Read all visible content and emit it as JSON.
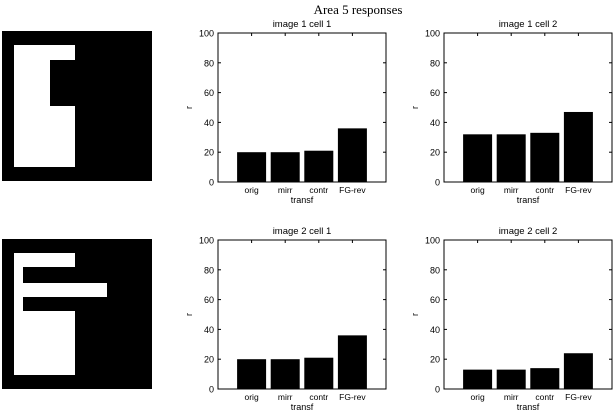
{
  "figure": {
    "title": "Area 5 responses"
  },
  "chart_data": [
    {
      "type": "bar",
      "title": "image 1 cell 1",
      "xlabel": "transf",
      "ylabel": "r",
      "categories": [
        "orig",
        "mirr",
        "contr",
        "FG-rev"
      ],
      "values": [
        20,
        20,
        21,
        36
      ],
      "ylim": [
        0,
        100
      ],
      "yticks": [
        0,
        20,
        40,
        60,
        80,
        100
      ],
      "bar_color": "#000000"
    },
    {
      "type": "bar",
      "title": "image 1 cell 2",
      "xlabel": "transf",
      "ylabel": "r",
      "categories": [
        "orig",
        "mirr",
        "contr",
        "FG-rev"
      ],
      "values": [
        32,
        32,
        33,
        47
      ],
      "ylim": [
        0,
        100
      ],
      "yticks": [
        0,
        20,
        40,
        60,
        80,
        100
      ],
      "bar_color": "#000000"
    },
    {
      "type": "bar",
      "title": "image 2 cell 1",
      "xlabel": "transf",
      "ylabel": "r",
      "categories": [
        "orig",
        "mirr",
        "contr",
        "FG-rev"
      ],
      "values": [
        20,
        20,
        21,
        36
      ],
      "ylim": [
        0,
        100
      ],
      "yticks": [
        0,
        20,
        40,
        60,
        80,
        100
      ],
      "bar_color": "#000000"
    },
    {
      "type": "bar",
      "title": "image 2 cell 2",
      "xlabel": "transf",
      "ylabel": "r",
      "categories": [
        "orig",
        "mirr",
        "contr",
        "FG-rev"
      ],
      "values": [
        13,
        13,
        14,
        24
      ],
      "ylim": [
        0,
        100
      ],
      "yticks": [
        0,
        20,
        40,
        60,
        80,
        100
      ],
      "bar_color": "#000000"
    }
  ],
  "stimuli": [
    {
      "name": "image-1-stimulus"
    },
    {
      "name": "image-2-stimulus"
    }
  ]
}
